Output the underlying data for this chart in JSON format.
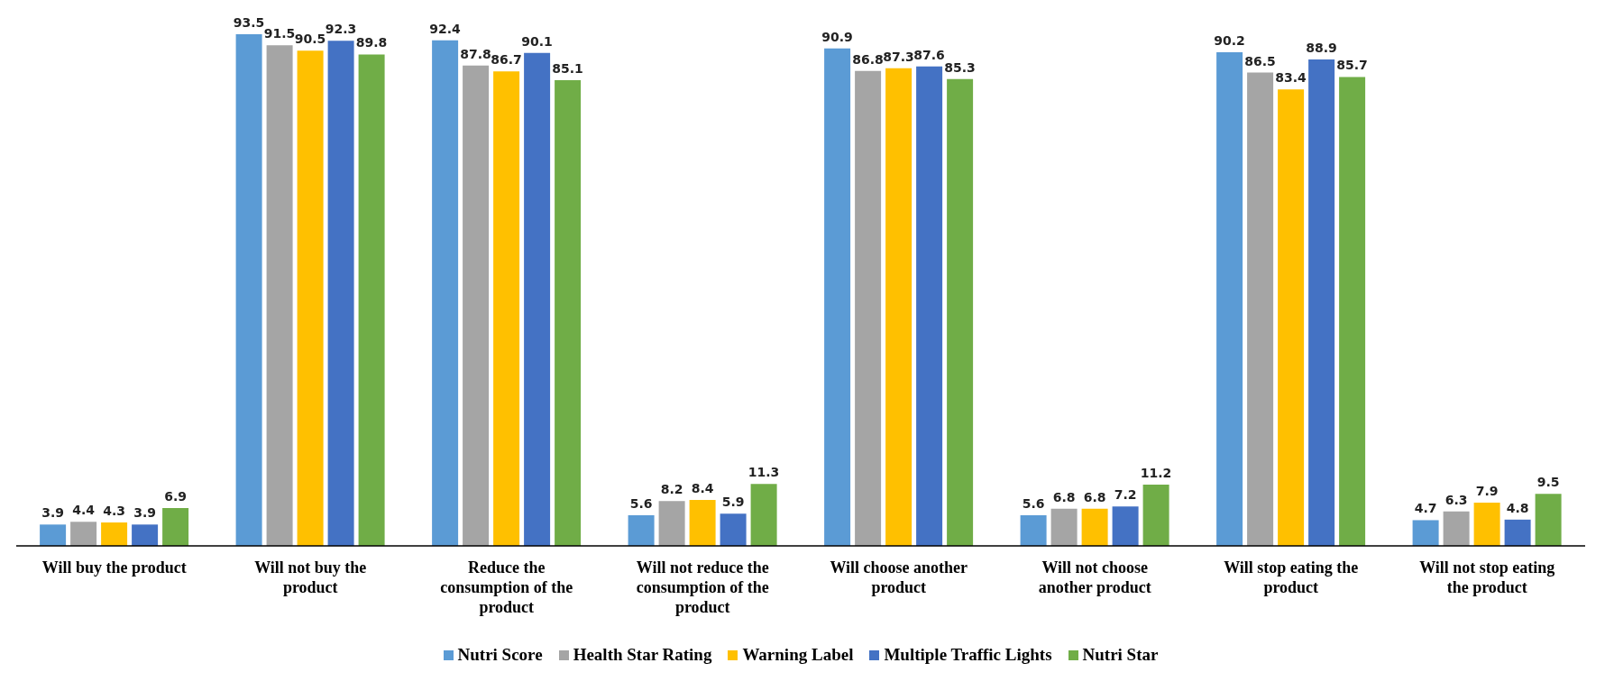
{
  "chart_data": {
    "type": "bar",
    "categories": [
      "Will buy the product",
      "Will not buy the product",
      "Reduce the consumption of the product",
      "Will not reduce the consumption of the product",
      "Will choose another product",
      "Will not choose another product",
      "Will stop eating the product",
      "Will not stop eating the product"
    ],
    "series": [
      {
        "name": "Nutri Score",
        "color": "#5b9bd5",
        "values": [
          3.9,
          93.5,
          92.4,
          5.6,
          90.9,
          5.6,
          90.2,
          4.7
        ]
      },
      {
        "name": "Health Star Rating",
        "color": "#a5a5a5",
        "values": [
          4.4,
          91.5,
          87.8,
          8.2,
          86.8,
          6.8,
          86.5,
          6.3
        ]
      },
      {
        "name": "Warning Label",
        "color": "#ffc000",
        "values": [
          4.3,
          90.5,
          86.7,
          8.4,
          87.3,
          6.8,
          83.4,
          7.9
        ]
      },
      {
        "name": "Multiple Traffic Lights",
        "color": "#4472c4",
        "values": [
          3.9,
          92.3,
          90.1,
          5.9,
          87.6,
          7.2,
          88.9,
          4.8
        ]
      },
      {
        "name": "Nutri Star",
        "color": "#70ad47",
        "values": [
          6.9,
          89.8,
          85.1,
          11.3,
          85.3,
          11.2,
          85.7,
          9.5
        ]
      }
    ],
    "data_labels": true,
    "grid": false,
    "legend": "bottom"
  }
}
